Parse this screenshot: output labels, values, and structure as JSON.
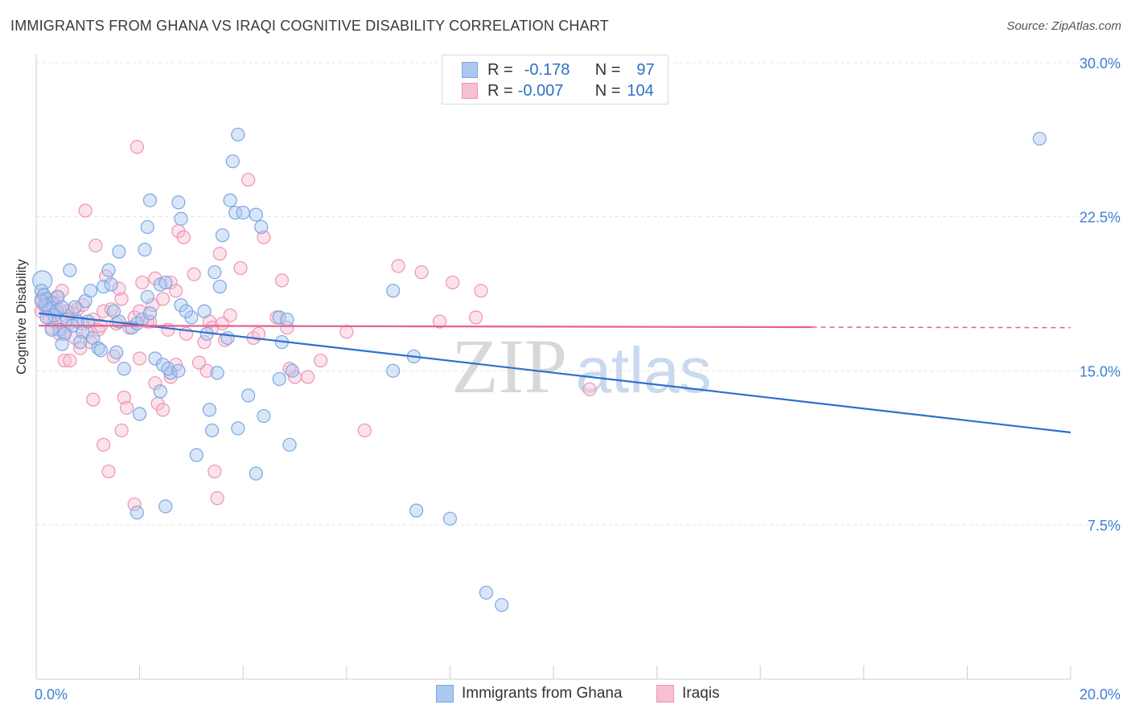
{
  "title": "IMMIGRANTS FROM GHANA VS IRAQI COGNITIVE DISABILITY CORRELATION CHART",
  "source": "Source: ZipAtlas.com",
  "watermark": {
    "zip": "ZIP",
    "atlas": "atlas"
  },
  "legend": {
    "r_label": "R =",
    "n_label": "N =",
    "series": [
      {
        "name": "Immigrants from Ghana",
        "r": "-0.178",
        "n": "97",
        "color": "#7aa7e3",
        "fill": "#aac8f0"
      },
      {
        "name": "Iraqis",
        "r": "-0.007",
        "n": "104",
        "color": "#ef93b3",
        "fill": "#f7bfd2"
      }
    ]
  },
  "colors": {
    "blue_line": "#2e6fd0",
    "pink_line": "#e8608d",
    "tick_text": "#3f7fd4",
    "grid": "#e3e3e3"
  },
  "chart_data": {
    "type": "scatter",
    "xlabel": "",
    "ylabel": "Cognitive Disability",
    "xlim": [
      0,
      20
    ],
    "ylim": [
      0,
      30.5
    ],
    "x_tick_labels": [
      "0.0%",
      "20.0%"
    ],
    "y_ticks": [
      7.5,
      15.0,
      22.5,
      30.0
    ],
    "y_tick_labels": [
      "7.5%",
      "15.0%",
      "22.5%",
      "30.0%"
    ],
    "grid": "horizontal dashed",
    "legend_position": "top-center",
    "series": [
      {
        "name": "Immigrants from Ghana",
        "trend": {
          "x": [
            0.05,
            20
          ],
          "y": [
            17.8,
            12.0
          ],
          "dashed_from": null
        },
        "points": [
          [
            0.12,
            19.4
          ],
          [
            0.1,
            18.9
          ],
          [
            0.15,
            18.7
          ],
          [
            0.2,
            18.5
          ],
          [
            0.3,
            18.3
          ],
          [
            0.18,
            18.2
          ],
          [
            0.25,
            18.0
          ],
          [
            0.4,
            17.9
          ],
          [
            0.5,
            18.1
          ],
          [
            0.35,
            17.7
          ],
          [
            0.6,
            17.5
          ],
          [
            0.8,
            17.4
          ],
          [
            0.7,
            17.2
          ],
          [
            0.45,
            17.0
          ],
          [
            0.9,
            16.9
          ],
          [
            0.55,
            16.8
          ],
          [
            1.1,
            16.6
          ],
          [
            0.85,
            16.4
          ],
          [
            1.2,
            16.1
          ],
          [
            0.65,
            19.9
          ],
          [
            0.95,
            18.4
          ],
          [
            1.05,
            18.9
          ],
          [
            1.3,
            19.1
          ],
          [
            1.45,
            19.2
          ],
          [
            1.5,
            17.9
          ],
          [
            1.6,
            17.4
          ],
          [
            1.55,
            15.9
          ],
          [
            1.7,
            15.1
          ],
          [
            1.85,
            17.1
          ],
          [
            1.95,
            17.3
          ],
          [
            2.05,
            17.5
          ],
          [
            2.2,
            17.8
          ],
          [
            2.15,
            18.6
          ],
          [
            2.4,
            19.2
          ],
          [
            2.5,
            19.3
          ],
          [
            2.3,
            15.6
          ],
          [
            2.45,
            15.3
          ],
          [
            2.6,
            14.9
          ],
          [
            2.55,
            15.1
          ],
          [
            2.75,
            15.0
          ],
          [
            2.8,
            18.2
          ],
          [
            3.0,
            17.6
          ],
          [
            3.25,
            17.9
          ],
          [
            3.3,
            16.8
          ],
          [
            3.45,
            19.8
          ],
          [
            3.55,
            19.1
          ],
          [
            3.7,
            16.6
          ],
          [
            3.5,
            14.9
          ],
          [
            3.35,
            13.1
          ],
          [
            3.4,
            12.1
          ],
          [
            3.1,
            10.9
          ],
          [
            2.4,
            14.0
          ],
          [
            2.0,
            12.9
          ],
          [
            1.4,
            19.9
          ],
          [
            1.6,
            20.8
          ],
          [
            2.1,
            20.9
          ],
          [
            2.15,
            22.0
          ],
          [
            2.2,
            23.3
          ],
          [
            2.75,
            23.2
          ],
          [
            2.8,
            22.4
          ],
          [
            3.6,
            21.6
          ],
          [
            3.75,
            23.3
          ],
          [
            3.85,
            22.7
          ],
          [
            4.0,
            22.7
          ],
          [
            4.25,
            22.6
          ],
          [
            4.35,
            22.0
          ],
          [
            3.8,
            25.2
          ],
          [
            3.9,
            26.5
          ],
          [
            4.7,
            17.6
          ],
          [
            4.85,
            17.5
          ],
          [
            4.75,
            16.4
          ],
          [
            4.95,
            15.0
          ],
          [
            4.7,
            14.6
          ],
          [
            4.4,
            12.8
          ],
          [
            4.9,
            11.4
          ],
          [
            4.1,
            13.8
          ],
          [
            3.9,
            12.2
          ],
          [
            4.25,
            10.0
          ],
          [
            2.5,
            8.4
          ],
          [
            1.95,
            8.1
          ],
          [
            7.35,
            8.2
          ],
          [
            6.9,
            18.9
          ],
          [
            6.9,
            15.0
          ],
          [
            7.3,
            15.7
          ],
          [
            8.0,
            7.8
          ],
          [
            9.0,
            3.6
          ],
          [
            8.7,
            4.2
          ],
          [
            19.4,
            26.3
          ],
          [
            0.3,
            17.0
          ],
          [
            0.5,
            16.3
          ],
          [
            1.25,
            16.0
          ],
          [
            1.0,
            17.4
          ],
          [
            0.75,
            18.1
          ],
          [
            0.42,
            18.6
          ],
          [
            0.2,
            17.6
          ],
          [
            0.1,
            18.4
          ],
          [
            2.9,
            17.9
          ]
        ]
      },
      {
        "name": "Iraqis",
        "trend": {
          "x": [
            0.05,
            20
          ],
          "y": [
            17.2,
            17.1
          ],
          "dashed_from": 15.0
        },
        "points": [
          [
            0.1,
            18.5
          ],
          [
            0.15,
            18.2
          ],
          [
            0.2,
            18.0
          ],
          [
            0.25,
            18.4
          ],
          [
            0.3,
            17.9
          ],
          [
            0.4,
            18.6
          ],
          [
            0.35,
            17.4
          ],
          [
            0.5,
            17.6
          ],
          [
            0.6,
            17.2
          ],
          [
            0.55,
            16.9
          ],
          [
            0.7,
            17.8
          ],
          [
            0.8,
            18.0
          ],
          [
            0.9,
            17.3
          ],
          [
            0.75,
            16.6
          ],
          [
            0.85,
            16.1
          ],
          [
            1.0,
            16.9
          ],
          [
            1.1,
            17.5
          ],
          [
            1.2,
            17.0
          ],
          [
            1.3,
            17.9
          ],
          [
            1.35,
            19.6
          ],
          [
            1.45,
            18.0
          ],
          [
            1.55,
            17.3
          ],
          [
            1.65,
            18.5
          ],
          [
            1.8,
            17.1
          ],
          [
            1.9,
            17.6
          ],
          [
            2.0,
            17.9
          ],
          [
            2.05,
            19.3
          ],
          [
            2.15,
            17.4
          ],
          [
            2.25,
            18.2
          ],
          [
            2.3,
            19.5
          ],
          [
            2.45,
            18.5
          ],
          [
            2.55,
            17.0
          ],
          [
            2.6,
            19.3
          ],
          [
            2.75,
            21.8
          ],
          [
            2.85,
            21.5
          ],
          [
            3.05,
            19.7
          ],
          [
            3.25,
            16.4
          ],
          [
            3.35,
            17.4
          ],
          [
            3.4,
            17.1
          ],
          [
            3.55,
            20.7
          ],
          [
            3.65,
            16.5
          ],
          [
            3.75,
            17.7
          ],
          [
            3.95,
            20.0
          ],
          [
            4.1,
            24.3
          ],
          [
            4.2,
            16.6
          ],
          [
            4.4,
            21.5
          ],
          [
            4.65,
            17.6
          ],
          [
            4.75,
            19.4
          ],
          [
            4.85,
            17.1
          ],
          [
            5.0,
            14.7
          ],
          [
            5.25,
            14.7
          ],
          [
            5.5,
            15.5
          ],
          [
            6.0,
            16.9
          ],
          [
            6.35,
            12.1
          ],
          [
            7.0,
            20.1
          ],
          [
            7.45,
            19.8
          ],
          [
            7.8,
            17.4
          ],
          [
            8.05,
            19.3
          ],
          [
            8.5,
            17.6
          ],
          [
            8.6,
            18.9
          ],
          [
            10.7,
            14.1
          ],
          [
            1.95,
            25.9
          ],
          [
            0.95,
            22.8
          ],
          [
            1.15,
            21.1
          ],
          [
            0.5,
            18.9
          ],
          [
            0.55,
            15.5
          ],
          [
            0.65,
            15.5
          ],
          [
            1.1,
            13.6
          ],
          [
            1.3,
            11.4
          ],
          [
            1.4,
            10.1
          ],
          [
            1.7,
            13.7
          ],
          [
            1.75,
            13.2
          ],
          [
            1.65,
            12.1
          ],
          [
            1.9,
            8.5
          ],
          [
            2.3,
            14.4
          ],
          [
            2.35,
            13.4
          ],
          [
            2.45,
            13.1
          ],
          [
            2.7,
            15.3
          ],
          [
            2.6,
            14.7
          ],
          [
            3.3,
            15.0
          ],
          [
            3.45,
            10.1
          ],
          [
            3.5,
            8.8
          ],
          [
            0.45,
            16.8
          ],
          [
            0.3,
            17.1
          ],
          [
            1.25,
            17.2
          ],
          [
            1.5,
            15.7
          ],
          [
            2.0,
            15.6
          ],
          [
            2.9,
            16.8
          ],
          [
            3.15,
            15.4
          ],
          [
            0.2,
            18.1
          ],
          [
            0.1,
            17.9
          ],
          [
            0.35,
            18.3
          ],
          [
            0.6,
            17.9
          ],
          [
            0.9,
            18.2
          ],
          [
            1.05,
            16.4
          ],
          [
            1.6,
            19.0
          ],
          [
            2.2,
            17.4
          ],
          [
            2.7,
            18.9
          ],
          [
            3.6,
            17.3
          ],
          [
            4.3,
            16.8
          ],
          [
            4.9,
            15.1
          ],
          [
            0.45,
            18.0
          ],
          [
            0.25,
            17.6
          ],
          [
            0.15,
            18.7
          ]
        ]
      }
    ]
  }
}
